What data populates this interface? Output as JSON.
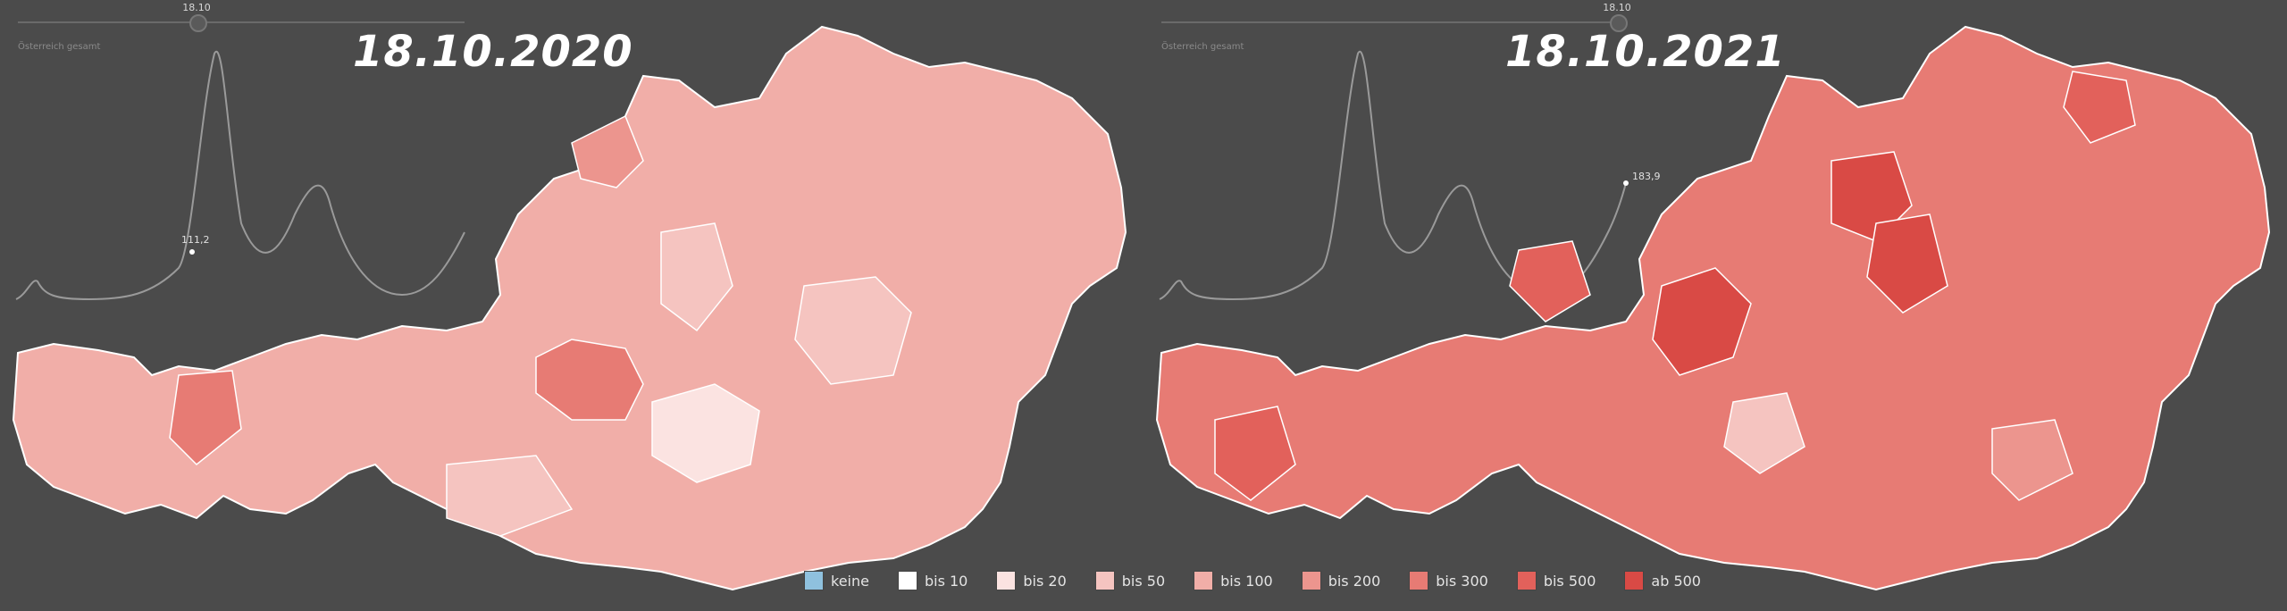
{
  "panels": [
    {
      "id": "left",
      "slider_date": "18.10",
      "country": "Österreich gesamt",
      "big_date": "18.10.2020",
      "incidence_value": "111,2"
    },
    {
      "id": "right",
      "slider_date": "18.10",
      "country": "Österreich gesamt",
      "big_date": "18.10.2021",
      "incidence_value": "183,9"
    }
  ],
  "legend": [
    {
      "label": "keine",
      "color": "#8fc1de"
    },
    {
      "label": "bis 10",
      "color": "#ffffff"
    },
    {
      "label": "bis 20",
      "color": "#fbe3e1"
    },
    {
      "label": "bis 50",
      "color": "#f5c4c0"
    },
    {
      "label": "bis 100",
      "color": "#f1aea8"
    },
    {
      "label": "bis 200",
      "color": "#ec958e"
    },
    {
      "label": "bis 300",
      "color": "#e77b74"
    },
    {
      "label": "bis 500",
      "color": "#e2615b"
    },
    {
      "label": "ab 500",
      "color": "#d94a45"
    }
  ],
  "map_colors": {
    "left_base": "#f1aea8",
    "right_base": "#e77b74",
    "border": "#ffffff"
  }
}
